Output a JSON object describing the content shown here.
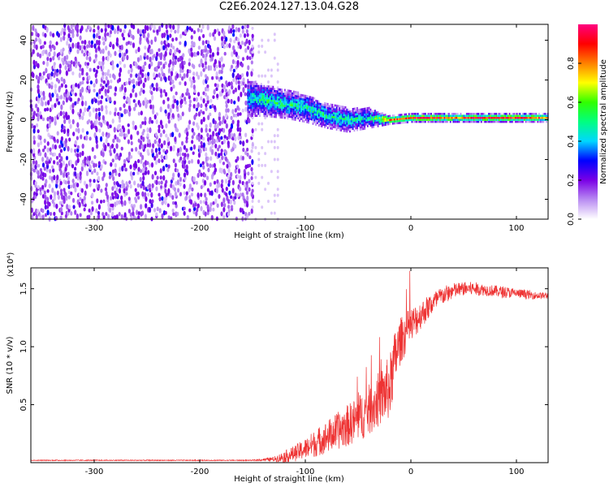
{
  "title": "C2E6.2024.127.13.04.G28",
  "chart_data": [
    {
      "type": "heatmap",
      "xlabel": "Height of straight line (km)",
      "ylabel": "Frequency (Hz)",
      "xlim": [
        -360,
        130
      ],
      "ylim": [
        -50,
        48
      ],
      "x_ticks": [
        -300,
        -200,
        -100,
        0,
        100
      ],
      "y_ticks": [
        -40,
        -20,
        0,
        20,
        40
      ],
      "colorbar": {
        "label": "Normalized spectral amplitude",
        "range": [
          0.0,
          1.0
        ],
        "ticks": [
          0.0,
          0.2,
          0.4,
          0.6,
          0.8
        ],
        "colors": [
          "#ffffff",
          "#b98cf2",
          "#7a00e6",
          "#0000ff",
          "#00d7ff",
          "#00ff80",
          "#30ff00",
          "#ffff00",
          "#ff8000",
          "#ff0000",
          "#ff0080"
        ]
      },
      "noise_region": {
        "x_range": [
          -360,
          -150
        ],
        "freq_range": [
          -50,
          48
        ],
        "amplitude": 0.12
      },
      "signal_track": [
        {
          "x": -155,
          "freq": 11,
          "spread": 9,
          "amplitude": 0.45
        },
        {
          "x": -140,
          "freq": 10,
          "spread": 8,
          "amplitude": 0.5
        },
        {
          "x": -120,
          "freq": 8,
          "spread": 7,
          "amplitude": 0.5
        },
        {
          "x": -100,
          "freq": 6,
          "spread": 7,
          "amplitude": 0.48
        },
        {
          "x": -80,
          "freq": 2,
          "spread": 6,
          "amplitude": 0.5
        },
        {
          "x": -60,
          "freq": 0,
          "spread": 6,
          "amplitude": 0.5
        },
        {
          "x": -40,
          "freq": 1,
          "spread": 5,
          "amplitude": 0.45
        },
        {
          "x": -20,
          "freq": 0,
          "spread": 2,
          "amplitude": 0.85
        },
        {
          "x": 0,
          "freq": 1,
          "spread": 2,
          "amplitude": 0.88
        },
        {
          "x": 20,
          "freq": 1,
          "spread": 2,
          "amplitude": 0.9
        },
        {
          "x": 40,
          "freq": 1,
          "spread": 2,
          "amplitude": 0.8
        },
        {
          "x": 60,
          "freq": 1,
          "spread": 2,
          "amplitude": 0.88
        },
        {
          "x": 80,
          "freq": 1,
          "spread": 2,
          "amplitude": 0.88
        },
        {
          "x": 100,
          "freq": 1,
          "spread": 2,
          "amplitude": 0.9
        },
        {
          "x": 120,
          "freq": 1,
          "spread": 2,
          "amplitude": 0.85
        },
        {
          "x": 130,
          "freq": 1,
          "spread": 2,
          "amplitude": 0.8
        }
      ]
    },
    {
      "type": "line",
      "xlabel": "Height of straight line (km)",
      "ylabel": "SNR (10 * v/v)",
      "y_multiplier": "(x10⁴)",
      "xlim": [
        -360,
        130
      ],
      "ylim": [
        0,
        1.68
      ],
      "x_ticks": [
        -300,
        -200,
        -100,
        0,
        100
      ],
      "y_ticks": [
        0.5,
        1.0,
        1.5
      ],
      "line_color": "#ee3333",
      "series": [
        {
          "x": [
            -360,
            -300,
            -200,
            -150,
            -130,
            -120,
            -110,
            -100,
            -90,
            -80,
            -70,
            -60,
            -50,
            -40,
            -30,
            -20,
            -15,
            -10,
            0,
            10,
            20,
            30,
            40,
            50,
            60,
            70,
            80,
            90,
            100,
            110,
            120,
            130
          ],
          "y": [
            0.02,
            0.02,
            0.02,
            0.02,
            0.03,
            0.05,
            0.08,
            0.12,
            0.17,
            0.22,
            0.27,
            0.32,
            0.38,
            0.45,
            0.55,
            0.65,
            0.9,
            1.05,
            1.18,
            1.28,
            1.37,
            1.44,
            1.48,
            1.5,
            1.5,
            1.49,
            1.48,
            1.47,
            1.46,
            1.45,
            1.44,
            1.44
          ],
          "noise": [
            0.004,
            0.004,
            0.004,
            0.004,
            0.02,
            0.05,
            0.07,
            0.09,
            0.12,
            0.14,
            0.16,
            0.18,
            0.2,
            0.22,
            0.24,
            0.28,
            0.25,
            0.2,
            0.16,
            0.12,
            0.1,
            0.08,
            0.07,
            0.06,
            0.06,
            0.05,
            0.05,
            0.05,
            0.04,
            0.04,
            0.03,
            0.03
          ]
        }
      ]
    }
  ]
}
